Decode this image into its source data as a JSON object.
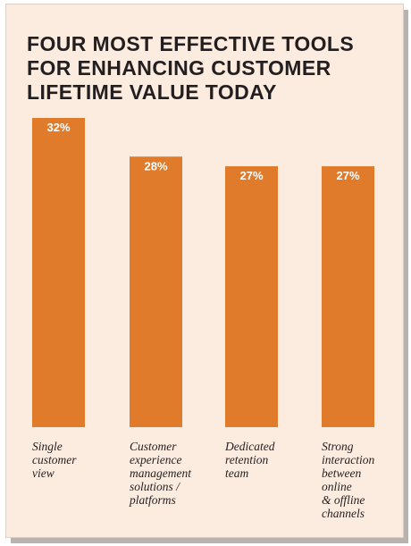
{
  "title_lines": [
    "FOUR MOST EFFECTIVE TOOLS",
    "FOR ENHANCING CUSTOMER",
    "LIFETIME VALUE TODAY"
  ],
  "colors": {
    "bar": "#e07b2b",
    "background": "#fcebdf",
    "text": "#231f20"
  },
  "chart_data": {
    "type": "bar",
    "title": "FOUR MOST EFFECTIVE TOOLS FOR ENHANCING CUSTOMER LIFETIME VALUE TODAY",
    "categories": [
      "Single\ncustomer\nview",
      "Customer\nexperience\nmanagement\nsolutions /\nplatforms",
      "Dedicated\nretention\nteam",
      "Strong\ninteraction\nbetween\nonline\n& offline\nchannels"
    ],
    "values": [
      32,
      28,
      27,
      27
    ],
    "value_labels": [
      "32%",
      "28%",
      "27%",
      "27%"
    ],
    "unit": "%",
    "ylim": [
      0,
      32
    ],
    "grid": false,
    "legend": "none"
  }
}
